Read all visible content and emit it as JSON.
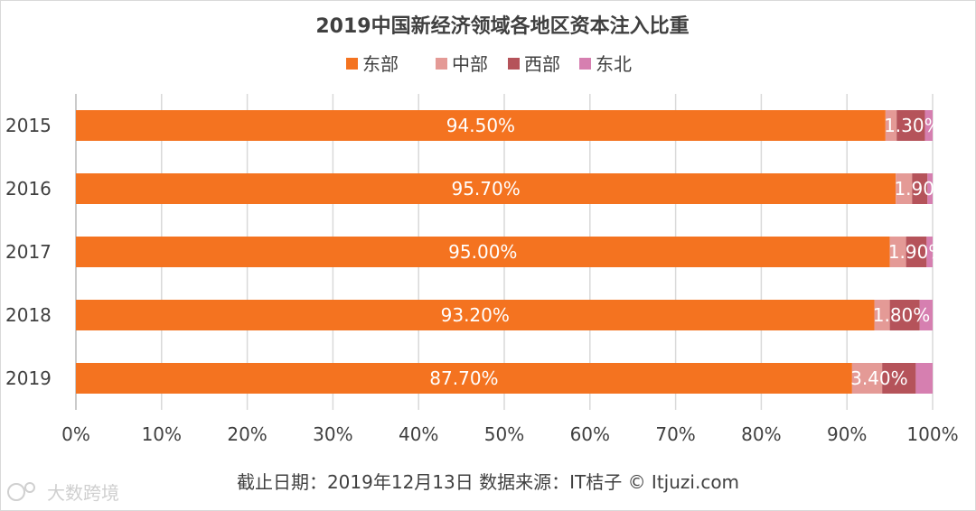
{
  "chart_data": {
    "type": "bar",
    "orientation": "horizontal",
    "stacked": "percent",
    "title": "2019中国新经济领域各地区资本注入比重",
    "categories": [
      "2015",
      "2016",
      "2017",
      "2018",
      "2019"
    ],
    "series": [
      {
        "name": "东部",
        "color": "#f47320",
        "values": [
          94.5,
          95.7,
          95.0,
          93.2,
          87.7
        ],
        "labels": [
          "94.50%",
          "95.70%",
          "95.00%",
          "93.20%",
          "87.70%"
        ]
      },
      {
        "name": "中部",
        "color": "#e49a96",
        "values": [
          1.3,
          1.9,
          1.9,
          1.8,
          3.4
        ],
        "labels": [
          "1.30%",
          "1.90%",
          "1.90%",
          "1.80%",
          "3.40%"
        ]
      },
      {
        "name": "西部",
        "color": "#b5535a",
        "values": [
          3.3,
          1.8,
          2.4,
          3.5,
          3.8
        ]
      },
      {
        "name": "东北",
        "color": "#d67fb0",
        "values": [
          0.9,
          0.6,
          0.7,
          1.5,
          1.9
        ]
      }
    ],
    "xlim": [
      0,
      100
    ],
    "xticks": [
      "0%",
      "10%",
      "20%",
      "30%",
      "40%",
      "50%",
      "60%",
      "70%",
      "80%",
      "90%",
      "100%"
    ],
    "grid": true,
    "legend_position": "top"
  },
  "footer": {
    "source": "截止日期：2019年12月13日     数据来源：IT桔子 © Itjuzi.com"
  },
  "watermark": {
    "text": "大数跨境"
  }
}
